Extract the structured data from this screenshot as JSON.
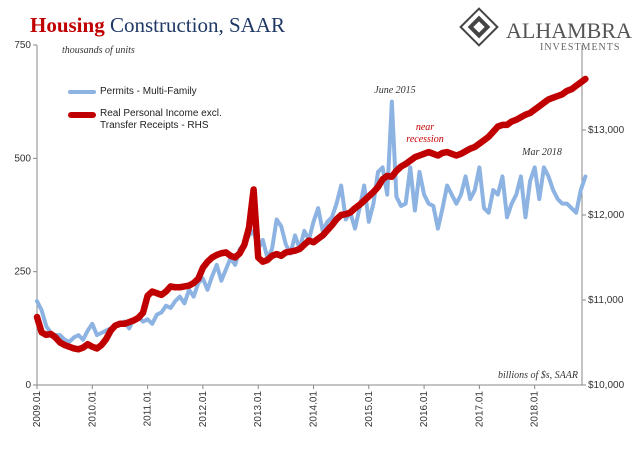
{
  "logo": {
    "name": "ALHAMBRA",
    "tagline": "INVESTMENTS"
  },
  "chart_data": {
    "type": "line",
    "title": [
      "Housing",
      "Construction, SAAR"
    ],
    "y_label": "thousands of units",
    "y2_label": "billions of $s, SAAR",
    "annotations": [
      {
        "text": "June 2015"
      },
      {
        "text": [
          "near",
          "recession"
        ]
      },
      {
        "text": "Mar 2018"
      }
    ],
    "categories": [
      "2009.01",
      null,
      null,
      null,
      null,
      null,
      null,
      null,
      null,
      null,
      null,
      null,
      "2010.01",
      null,
      null,
      null,
      null,
      null,
      null,
      null,
      null,
      null,
      null,
      null,
      "2011.01",
      null,
      null,
      null,
      null,
      null,
      null,
      null,
      null,
      null,
      null,
      null,
      "2012.01",
      null,
      null,
      null,
      null,
      null,
      null,
      null,
      null,
      null,
      null,
      null,
      "2013.01",
      null,
      null,
      null,
      null,
      null,
      null,
      null,
      null,
      null,
      null,
      null,
      "2014.01",
      null,
      null,
      null,
      null,
      null,
      null,
      null,
      null,
      null,
      null,
      null,
      "2015.01",
      null,
      null,
      null,
      null,
      null,
      null,
      null,
      null,
      null,
      null,
      null,
      "2016.01",
      null,
      null,
      null,
      null,
      null,
      null,
      null,
      null,
      null,
      null,
      null,
      "2017.01",
      null,
      null,
      null,
      null,
      null,
      null,
      null,
      null,
      null,
      null,
      null,
      "2018.01",
      null,
      null,
      null,
      null,
      null,
      null,
      null,
      null,
      null,
      null,
      null
    ],
    "series": [
      {
        "name": "Permits - Multi-Family",
        "color": "#8db3e2",
        "values": [
          185,
          165,
          130,
          115,
          110,
          110,
          100,
          95,
          105,
          110,
          100,
          120,
          135,
          110,
          115,
          120,
          125,
          130,
          135,
          140,
          125,
          145,
          150,
          140,
          145,
          135,
          155,
          160,
          175,
          170,
          185,
          195,
          180,
          210,
          195,
          225,
          235,
          210,
          240,
          265,
          230,
          255,
          280,
          265,
          300,
          310,
          330,
          340,
          300,
          320,
          280,
          300,
          365,
          350,
          310,
          290,
          330,
          300,
          340,
          320,
          360,
          390,
          340,
          360,
          370,
          400,
          440,
          365,
          380,
          345,
          390,
          440,
          360,
          400,
          470,
          480,
          420,
          625,
          415,
          395,
          400,
          480,
          385,
          470,
          420,
          400,
          395,
          345,
          390,
          440,
          420,
          400,
          420,
          460,
          410,
          430,
          480,
          390,
          380,
          430,
          420,
          460,
          370,
          400,
          420,
          460,
          370,
          450,
          480,
          410,
          480,
          460,
          430,
          410,
          400,
          400,
          390,
          380,
          430,
          460
        ]
      },
      {
        "name": "Real Personal Income excl. Transfer Receipts - RHS",
        "color": "#c00000",
        "axis": "y2",
        "values": [
          10800,
          10620,
          10590,
          10600,
          10560,
          10500,
          10470,
          10450,
          10430,
          10420,
          10440,
          10480,
          10450,
          10430,
          10470,
          10540,
          10640,
          10700,
          10720,
          10720,
          10740,
          10760,
          10790,
          10850,
          11050,
          11100,
          11080,
          11060,
          11100,
          11160,
          11150,
          11150,
          11160,
          11170,
          11200,
          11250,
          11380,
          11450,
          11500,
          11530,
          11550,
          11560,
          11520,
          11500,
          11550,
          11650,
          11850,
          12300,
          11500,
          11450,
          11470,
          11520,
          11540,
          11520,
          11560,
          11570,
          11580,
          11600,
          11650,
          11700,
          11680,
          11720,
          11760,
          11820,
          11880,
          11950,
          12000,
          12010,
          12030,
          12080,
          12120,
          12170,
          12220,
          12270,
          12330,
          12420,
          12460,
          12450,
          12520,
          12570,
          12600,
          12640,
          12680,
          12700,
          12720,
          12740,
          12720,
          12700,
          12730,
          12740,
          12720,
          12700,
          12720,
          12750,
          12780,
          12800,
          12840,
          12880,
          12920,
          12980,
          13040,
          13060,
          13060,
          13100,
          13120,
          13150,
          13180,
          13200,
          13240,
          13280,
          13320,
          13360,
          13380,
          13400,
          13420,
          13460,
          13480,
          13520,
          13560,
          13600
        ]
      }
    ],
    "ylim": [
      0,
      750
    ],
    "yticks": [
      0,
      250,
      500,
      750
    ],
    "y2lim": [
      10000,
      14000
    ],
    "y2ticks": [
      {
        "value": 10000,
        "label": "$10,000"
      },
      {
        "value": 11000,
        "label": "$11,000"
      },
      {
        "value": 12000,
        "label": "$12,000"
      },
      {
        "value": 13000,
        "label": "$13,000"
      }
    ],
    "grid": false
  }
}
